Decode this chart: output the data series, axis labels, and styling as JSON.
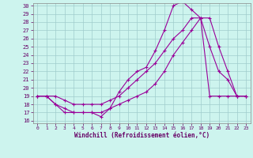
{
  "xlabel": "Windchill (Refroidissement éolien,°C)",
  "bg_color": "#cdf4ee",
  "line_color": "#990099",
  "xlim": [
    -0.5,
    23.5
  ],
  "ylim": [
    15.7,
    30.3
  ],
  "xticks": [
    0,
    1,
    2,
    3,
    4,
    5,
    6,
    7,
    8,
    9,
    10,
    11,
    12,
    13,
    14,
    15,
    16,
    17,
    18,
    19,
    20,
    21,
    22,
    23
  ],
  "yticks": [
    16,
    17,
    18,
    19,
    20,
    21,
    22,
    23,
    24,
    25,
    26,
    27,
    28,
    29,
    30
  ],
  "series1_x": [
    0,
    1,
    2,
    3,
    4,
    5,
    6,
    7,
    8,
    9,
    10,
    11,
    12,
    13,
    14,
    15,
    16,
    17,
    18,
    19,
    20,
    21,
    22,
    23
  ],
  "series1_y": [
    19,
    19,
    18,
    17.5,
    17,
    17,
    17,
    16.5,
    17.5,
    19.5,
    21,
    22,
    22.5,
    24.5,
    27,
    30,
    30.5,
    29.5,
    28.5,
    19,
    19,
    19,
    19,
    19
  ],
  "series2_x": [
    0,
    1,
    2,
    3,
    4,
    5,
    6,
    7,
    8,
    9,
    10,
    11,
    12,
    13,
    14,
    15,
    16,
    17,
    18,
    19,
    20,
    21,
    22,
    23
  ],
  "series2_y": [
    19,
    19,
    18,
    17,
    17,
    17,
    17,
    17,
    17.5,
    18,
    18.5,
    19,
    19.5,
    20.5,
    22,
    24,
    25.5,
    27,
    28.5,
    25,
    22,
    21,
    19,
    19
  ],
  "series3_x": [
    0,
    1,
    2,
    3,
    4,
    5,
    6,
    7,
    8,
    9,
    10,
    11,
    12,
    13,
    14,
    15,
    16,
    17,
    18,
    19,
    20,
    21,
    22,
    23
  ],
  "series3_y": [
    19,
    19,
    19,
    18.5,
    18,
    18,
    18,
    18,
    18.5,
    19,
    20,
    21,
    22,
    23,
    24.5,
    26,
    27,
    28.5,
    28.5,
    28.5,
    25,
    22,
    19,
    19
  ]
}
